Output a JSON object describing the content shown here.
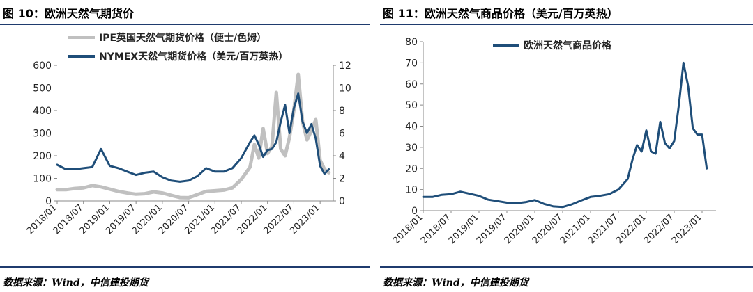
{
  "left": {
    "title": "图 10：欧洲天然气期货价",
    "source": "数据来源：Wind，中信建投期货",
    "chart_data": {
      "type": "line",
      "x_tick_labels": [
        "2018/01",
        "2018/07",
        "2019/01",
        "2019/07",
        "2020/01",
        "2020/07",
        "2021/01",
        "2021/07",
        "2022/01",
        "2022/07",
        "2023/01"
      ],
      "ylim_left": [
        0,
        600
      ],
      "ylim_right": [
        0,
        12
      ],
      "y_ticks_left": [
        "0",
        "100",
        "200",
        "300",
        "400",
        "500",
        "600"
      ],
      "y_ticks_right": [
        "0",
        "2",
        "4",
        "6",
        "8",
        "10",
        "12"
      ],
      "legend_position": "top-center",
      "series": [
        {
          "name": "IPE英国天然气期货价格（便士/色姆）",
          "axis": "left",
          "color": "#c0c0c0",
          "x": [
            "2018/01",
            "2018/03",
            "2018/05",
            "2018/07",
            "2018/09",
            "2018/11",
            "2019/01",
            "2019/03",
            "2019/05",
            "2019/07",
            "2019/09",
            "2019/11",
            "2020/01",
            "2020/03",
            "2020/05",
            "2020/07",
            "2020/09",
            "2020/11",
            "2021/01",
            "2021/03",
            "2021/05",
            "2021/07",
            "2021/09",
            "2021/10",
            "2021/11",
            "2021/12",
            "2022/01",
            "2022/02",
            "2022/03",
            "2022/04",
            "2022/05",
            "2022/06",
            "2022/07",
            "2022/08",
            "2022/09",
            "2022/10",
            "2022/11",
            "2022/12",
            "2023/01",
            "2023/02",
            "2023/03"
          ],
          "values": [
            50,
            50,
            55,
            58,
            68,
            62,
            52,
            42,
            35,
            30,
            32,
            40,
            35,
            25,
            15,
            14,
            28,
            42,
            45,
            48,
            58,
            95,
            150,
            250,
            190,
            320,
            210,
            240,
            480,
            230,
            200,
            280,
            400,
            560,
            350,
            270,
            310,
            360,
            180,
            140,
            125
          ]
        },
        {
          "name": "NYMEX天然气期货价格（美元/百万英热）",
          "axis": "right",
          "color": "#1f4e79",
          "x": [
            "2018/01",
            "2018/03",
            "2018/05",
            "2018/07",
            "2018/09",
            "2018/11",
            "2019/01",
            "2019/03",
            "2019/05",
            "2019/07",
            "2019/09",
            "2019/11",
            "2020/01",
            "2020/03",
            "2020/05",
            "2020/07",
            "2020/09",
            "2020/11",
            "2021/01",
            "2021/03",
            "2021/05",
            "2021/07",
            "2021/09",
            "2021/10",
            "2021/11",
            "2021/12",
            "2022/01",
            "2022/02",
            "2022/03",
            "2022/04",
            "2022/05",
            "2022/06",
            "2022/07",
            "2022/08",
            "2022/09",
            "2022/10",
            "2022/11",
            "2022/12",
            "2023/01",
            "2023/02",
            "2023/03"
          ],
          "values": [
            3.2,
            2.8,
            2.8,
            2.9,
            3.0,
            4.6,
            3.1,
            2.9,
            2.6,
            2.3,
            2.5,
            2.6,
            2.1,
            1.8,
            1.7,
            1.8,
            2.2,
            2.9,
            2.6,
            2.6,
            2.9,
            3.8,
            5.2,
            5.8,
            5.0,
            3.9,
            4.5,
            4.6,
            5.2,
            7.0,
            8.5,
            6.0,
            8.2,
            9.5,
            7.0,
            6.0,
            6.8,
            5.5,
            3.1,
            2.4,
            2.8
          ]
        }
      ]
    }
  },
  "right": {
    "title": "图 11：欧洲天然气商品价格（美元/百万英热）",
    "source": "数据来源：Wind，中信建投期货",
    "chart_data": {
      "type": "line",
      "x_tick_labels": [
        "2018/01",
        "2018/07",
        "2019/01",
        "2019/07",
        "2020/01",
        "2020/07",
        "2021/01",
        "2021/07",
        "2022/01",
        "2022/07",
        "2023/01"
      ],
      "ylim": [
        0,
        80
      ],
      "y_ticks": [
        "0",
        "10",
        "20",
        "30",
        "40",
        "50",
        "60",
        "70",
        "80"
      ],
      "legend_position": "top-center",
      "series": [
        {
          "name": "欧洲天然气商品价格",
          "color": "#1f4e79",
          "x": [
            "2018/01",
            "2018/03",
            "2018/05",
            "2018/07",
            "2018/09",
            "2018/11",
            "2019/01",
            "2019/03",
            "2019/05",
            "2019/07",
            "2019/09",
            "2019/11",
            "2020/01",
            "2020/03",
            "2020/05",
            "2020/07",
            "2020/09",
            "2020/11",
            "2021/01",
            "2021/03",
            "2021/05",
            "2021/07",
            "2021/09",
            "2021/10",
            "2021/11",
            "2021/12",
            "2022/01",
            "2022/02",
            "2022/03",
            "2022/04",
            "2022/05",
            "2022/06",
            "2022/07",
            "2022/08",
            "2022/09",
            "2022/10",
            "2022/11",
            "2022/12",
            "2023/01",
            "2023/02"
          ],
          "values": [
            6.5,
            6.5,
            7.5,
            7.8,
            9.0,
            8.0,
            7.0,
            5.2,
            4.5,
            3.8,
            3.5,
            4.0,
            5.0,
            3.2,
            2.0,
            1.7,
            3.0,
            4.8,
            6.5,
            7.0,
            7.8,
            10.0,
            15.0,
            24.0,
            31.0,
            28.0,
            38.0,
            28.0,
            27.0,
            42.0,
            32.0,
            29.5,
            33.0,
            50.0,
            70.0,
            59.0,
            39.0,
            36.0,
            36.0,
            20.0
          ]
        }
      ]
    }
  }
}
